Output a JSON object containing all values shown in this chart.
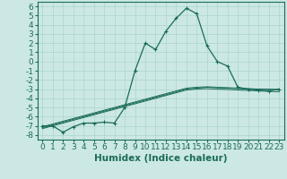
{
  "xlabel": "Humidex (Indice chaleur)",
  "xlim": [
    -0.5,
    23.5
  ],
  "ylim": [
    -8.5,
    6.5
  ],
  "xticks": [
    0,
    1,
    2,
    3,
    4,
    5,
    6,
    7,
    8,
    9,
    10,
    11,
    12,
    13,
    14,
    15,
    16,
    17,
    18,
    19,
    20,
    21,
    22,
    23
  ],
  "yticks": [
    -8,
    -7,
    -6,
    -5,
    -4,
    -3,
    -2,
    -1,
    0,
    1,
    2,
    3,
    4,
    5,
    6
  ],
  "bg_color": "#cce8e4",
  "grid_color": "#aad4cf",
  "line_color": "#1a6b5a",
  "x": [
    0,
    1,
    2,
    3,
    4,
    5,
    6,
    7,
    8,
    9,
    10,
    11,
    12,
    13,
    14,
    15,
    16,
    17,
    18,
    19,
    20,
    21,
    22,
    23
  ],
  "main_curve": [
    -7.0,
    -7.0,
    -7.7,
    -7.1,
    -6.7,
    -6.7,
    -6.6,
    -6.7,
    -5.0,
    -1.0,
    2.0,
    1.3,
    3.3,
    4.7,
    5.8,
    5.2,
    1.7,
    0.0,
    -0.5,
    -2.8,
    -3.0,
    -3.1,
    -3.2,
    -3.0
  ],
  "reg_line1": [
    -7.2,
    -6.9,
    -6.6,
    -6.3,
    -6.0,
    -5.7,
    -5.4,
    -5.1,
    -4.8,
    -4.5,
    -4.2,
    -3.9,
    -3.6,
    -3.3,
    -3.0,
    -2.9,
    -2.8,
    -2.85,
    -2.9,
    -2.95,
    -3.0,
    -3.0,
    -3.05,
    -3.1
  ],
  "reg_line2": [
    -7.3,
    -7.0,
    -6.7,
    -6.4,
    -6.1,
    -5.8,
    -5.5,
    -5.2,
    -4.9,
    -4.6,
    -4.3,
    -4.0,
    -3.7,
    -3.4,
    -3.1,
    -3.0,
    -2.95,
    -3.0,
    -3.05,
    -3.1,
    -3.15,
    -3.2,
    -3.25,
    -3.3
  ],
  "reg_line3": [
    -7.1,
    -6.8,
    -6.5,
    -6.2,
    -5.9,
    -5.6,
    -5.3,
    -5.0,
    -4.7,
    -4.4,
    -4.1,
    -3.8,
    -3.5,
    -3.2,
    -2.9,
    -2.8,
    -2.75,
    -2.8,
    -2.85,
    -2.9,
    -2.95,
    -3.0,
    -3.0,
    -3.05
  ],
  "font_color": "#1a6b5a",
  "tick_fontsize": 6.5,
  "label_fontsize": 7.5
}
